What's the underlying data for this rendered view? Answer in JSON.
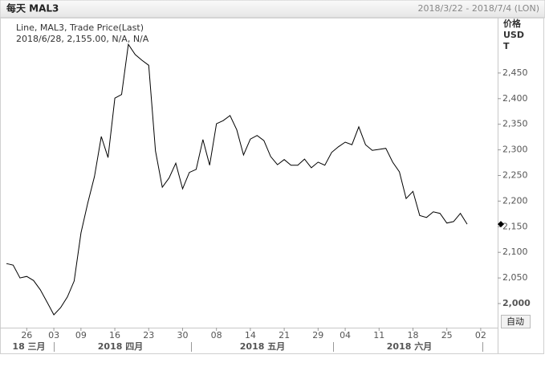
{
  "header": {
    "title": "每天 MAL3",
    "range": "2018/3/22 - 2018/7/4 (LON)"
  },
  "chart_data": {
    "type": "line",
    "info_line": "2018/6/28, 2,155.00, N/A, N/A",
    "y_axis_title": [
      "价格",
      "USD",
      "T"
    ],
    "button": "自动",
    "categories": [
      null,
      null,
      null,
      "26",
      null,
      null,
      null,
      "03",
      null,
      null,
      null,
      "09",
      null,
      null,
      null,
      null,
      "16",
      null,
      null,
      null,
      null,
      "23",
      null,
      null,
      null,
      null,
      "30",
      null,
      null,
      null,
      null,
      "08",
      null,
      null,
      null,
      null,
      "14",
      null,
      null,
      null,
      null,
      "21",
      null,
      null,
      null,
      null,
      "29",
      null,
      null,
      null,
      "04",
      null,
      null,
      null,
      null,
      "11",
      null,
      null,
      null,
      null,
      "18",
      null,
      null,
      null,
      null,
      "25",
      null,
      null,
      null,
      null,
      "02",
      null,
      null
    ],
    "series": [
      {
        "name": "Line, MAL3, Trade Price(Last)",
        "color": "#000000",
        "values": [
          2078,
          2075,
          2050,
          2053,
          2045,
          2027,
          2003,
          1978,
          1992,
          2013,
          2044,
          2138,
          2196,
          2248,
          2326,
          2285,
          2401,
          2408,
          2506,
          2486,
          2475,
          2465,
          2298,
          2227,
          2245,
          2274,
          2224,
          2256,
          2262,
          2320,
          2270,
          2351,
          2357,
          2367,
          2339,
          2290,
          2321,
          2328,
          2318,
          2287,
          2271,
          2281,
          2270,
          2270,
          2282,
          2265,
          2276,
          2270,
          2295,
          2306,
          2315,
          2310,
          2345,
          2310,
          2299,
          2301,
          2303,
          2276,
          2257,
          2205,
          2219,
          2172,
          2168,
          2179,
          2176,
          2157,
          2160,
          2176,
          2155,
          null,
          null,
          null,
          null
        ]
      }
    ],
    "month_labels": [
      "18 三月",
      "2018 四月",
      "2018 五月",
      "2018 六月"
    ],
    "ylim": [
      1953,
      2558
    ],
    "yticks": [
      {
        "value": 2000,
        "label": "2,000"
      },
      {
        "value": 2050,
        "label": "2,050"
      },
      {
        "value": 2100,
        "label": "2,100"
      },
      {
        "value": 2150,
        "label": "2,150"
      },
      {
        "value": 2200,
        "label": "2,200"
      },
      {
        "value": 2250,
        "label": "2,250"
      },
      {
        "value": 2300,
        "label": "2,300"
      },
      {
        "value": 2350,
        "label": "2,350"
      },
      {
        "value": 2400,
        "label": "2,400"
      },
      {
        "value": 2450,
        "label": "2,450"
      }
    ],
    "grid": false
  }
}
